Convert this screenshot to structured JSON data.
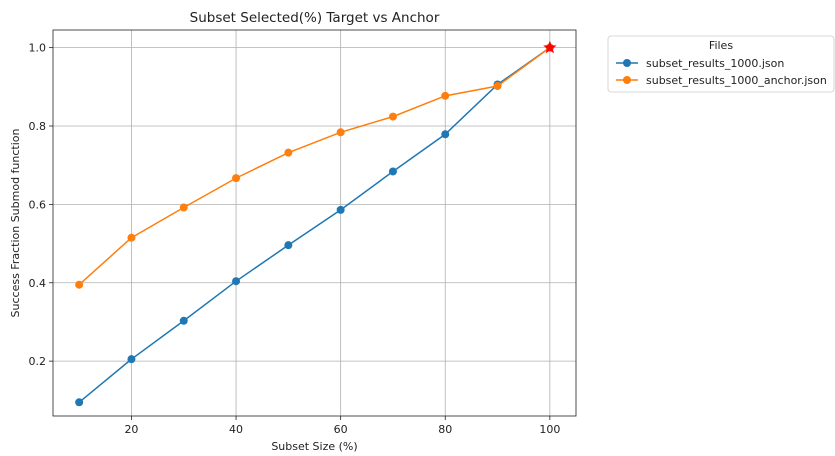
{
  "chart_data": {
    "type": "line",
    "title": "Subset Selected(%) Target vs Anchor",
    "xlabel": "Subset Size (%)",
    "ylabel": "Success Fraction Submod function",
    "xlim": [
      5,
      105
    ],
    "ylim": [
      0.06,
      1.045
    ],
    "xticks": [
      20,
      40,
      60,
      80,
      100
    ],
    "yticks": [
      0.2,
      0.4,
      0.6,
      0.8,
      1.0
    ],
    "xtick_labels": [
      "20",
      "40",
      "60",
      "80",
      "100"
    ],
    "ytick_labels": [
      "0.2",
      "0.4",
      "0.6",
      "0.8",
      "1.0"
    ],
    "grid": true,
    "legend": {
      "title": "Files",
      "placement": "outside-top-right"
    },
    "x": [
      10,
      20,
      30,
      40,
      50,
      60,
      70,
      80,
      90,
      100
    ],
    "series": [
      {
        "name": "subset_results_1000.json",
        "color": "#1f77b4",
        "values": [
          0.095,
          0.205,
          0.303,
          0.404,
          0.496,
          0.586,
          0.684,
          0.779,
          0.906,
          1.0
        ]
      },
      {
        "name": "subset_results_1000_anchor.json",
        "color": "#ff7f0e",
        "values": [
          0.395,
          0.515,
          0.592,
          0.667,
          0.732,
          0.784,
          0.824,
          0.877,
          0.902,
          1.0
        ]
      }
    ],
    "highlight": {
      "x": 100,
      "y": 1.0,
      "marker": "star",
      "color": "#ff0000"
    }
  }
}
